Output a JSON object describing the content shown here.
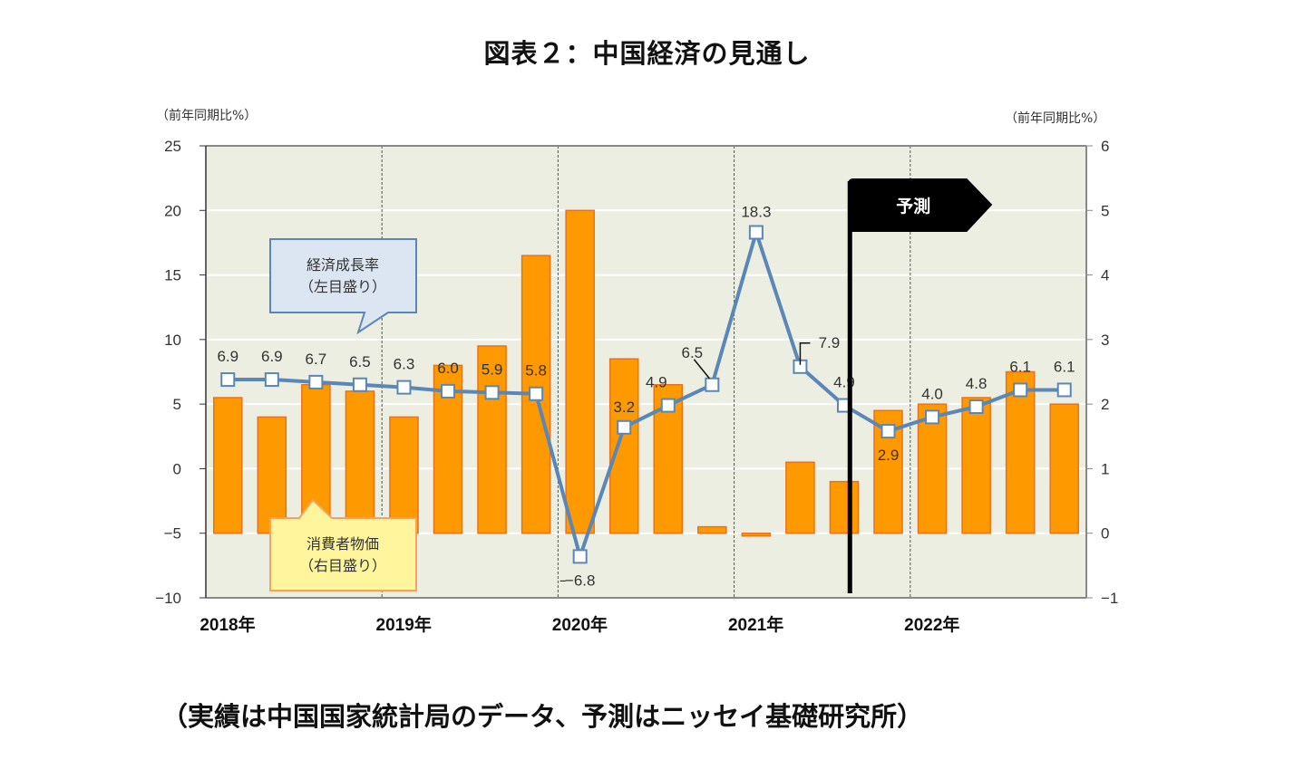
{
  "title": "図表２：中国経済の見通し",
  "footnote": "（実績は中国国家統計局のデータ、予測はニッセイ基礎研究所）",
  "chart_data": {
    "type": "bar+line",
    "title": "図表２：中国経済の見通し",
    "left_axis": {
      "unit_label": "（前年同期比%）",
      "range": [
        -10,
        25
      ],
      "ticks": [
        "25",
        "20",
        "15",
        "10",
        "5",
        "0",
        "−5",
        "−10"
      ],
      "tick_values": [
        25,
        20,
        15,
        10,
        5,
        0,
        -5,
        -10
      ]
    },
    "right_axis": {
      "unit_label": "（前年同期比%）",
      "range": [
        -1,
        6
      ],
      "ticks": [
        "6",
        "5",
        "4",
        "3",
        "2",
        "1",
        "0",
        "−1"
      ],
      "tick_values": [
        6,
        5,
        4,
        3,
        2,
        1,
        0,
        -1
      ]
    },
    "x_labels": [
      "2018年",
      "2019年",
      "2020年",
      "2021年",
      "2022年"
    ],
    "quarters_per_year": 4,
    "series": [
      {
        "name": "消費者物価",
        "type": "bar",
        "axis": "right",
        "color": "#ff9900",
        "border": "#e8731a",
        "values": [
          2.1,
          1.8,
          2.3,
          2.2,
          1.8,
          2.6,
          2.9,
          4.3,
          5.0,
          2.7,
          2.3,
          0.1,
          -0.03,
          1.1,
          0.8,
          1.9,
          2.0,
          2.1,
          2.5,
          2.0
        ]
      },
      {
        "name": "経済成長率",
        "type": "line",
        "axis": "left",
        "color": "#5b86b8",
        "values": [
          6.9,
          6.9,
          6.7,
          6.5,
          6.3,
          6.0,
          5.9,
          5.8,
          -6.8,
          3.2,
          4.9,
          6.5,
          18.3,
          7.9,
          4.9,
          2.9,
          4.0,
          4.8,
          6.1,
          6.1
        ],
        "labels": [
          "6.9",
          "6.9",
          "6.7",
          "6.5",
          "6.3",
          "6.0",
          "5.9",
          "5.8",
          "-6.8",
          "3.2",
          "4.9",
          "6.5",
          "18.3",
          "7.9",
          "4.9",
          "2.9",
          "4.0",
          "4.8",
          "6.1",
          "6.1"
        ]
      }
    ],
    "callouts": {
      "gdp": [
        "経済成長率",
        "（左目盛り）"
      ],
      "cpi": [
        "消費者物価",
        "（右目盛り）"
      ]
    },
    "forecast_flag": {
      "label": "予測",
      "start_after_quarter_index": 14
    },
    "colors": {
      "plot_bg": "#ebeee0",
      "grid": "#ffffff",
      "gdp_callout_fill": "#dce6f2",
      "gdp_callout_stroke": "#5b86b8",
      "cpi_callout_fill": "#fff59d",
      "cpi_callout_stroke": "#f4a460"
    }
  }
}
